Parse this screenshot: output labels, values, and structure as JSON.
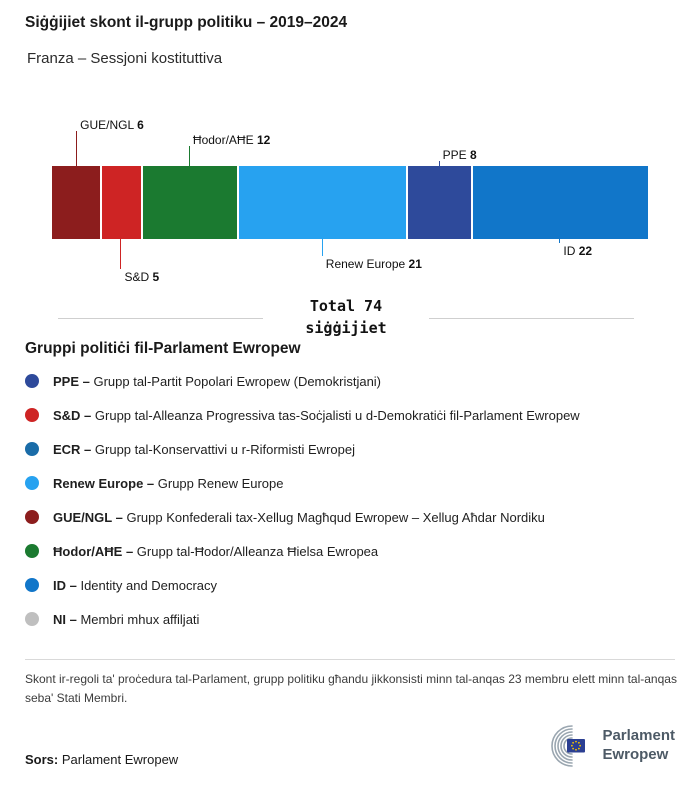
{
  "chart_data": {
    "type": "bar",
    "orientation": "horizontal-stacked",
    "title": "Siġġijiet skont il-grupp politiku – 2019–2024",
    "subtitle": "Franza – Sessjoni kostituttiva",
    "total": 74,
    "total_label": {
      "line1": "Total 74",
      "line2": "siġġijiet"
    },
    "categories": [
      "GUE/NGL",
      "S&D",
      "Ħodor/AĦE",
      "Renew Europe",
      "PPE",
      "ID"
    ],
    "values": [
      6,
      5,
      12,
      21,
      8,
      22
    ],
    "segments": [
      {
        "name": "GUE/NGL",
        "seats": 6,
        "color": "#8C1D1D",
        "label_side": "above",
        "tier": 3
      },
      {
        "name": "S&D",
        "seats": 5,
        "color": "#CE2424",
        "label_side": "below",
        "tier": 3
      },
      {
        "name": "Ħodor/AĦE",
        "seats": 12,
        "color": "#1B7A30",
        "label_side": "above",
        "tier": 2
      },
      {
        "name": "Renew Europe",
        "seats": 21,
        "color": "#27A2F0",
        "label_side": "below",
        "tier": 2
      },
      {
        "name": "PPE",
        "seats": 8,
        "color": "#2E4A9B",
        "label_side": "above",
        "tier": 1
      },
      {
        "name": "ID",
        "seats": 22,
        "color": "#1176C9",
        "label_side": "below",
        "tier": 1
      }
    ]
  },
  "legend": {
    "heading": "Gruppi politiċi fil-Parlament Ewropew",
    "items": [
      {
        "abbr": "PPE",
        "desc": "Grupp tal-Partit Popolari Ewropew (Demokristjani)",
        "color": "#2E4A9B"
      },
      {
        "abbr": "S&D",
        "desc": "Grupp tal-Alleanza Progressiva tas-Soċjalisti u d-Demokratiċi fil-Parlament Ewropew",
        "color": "#CE2424"
      },
      {
        "abbr": "ECR",
        "desc": "Grupp tal-Konservattivi u r-Riformisti Ewropej",
        "color": "#1A6CA8"
      },
      {
        "abbr": "Renew Europe",
        "desc": "Grupp Renew Europe",
        "color": "#27A2F0"
      },
      {
        "abbr": "GUE/NGL",
        "desc": "Grupp Konfederali tax-Xellug Magħqud Ewropew – Xellug Aħdar Nordiku",
        "color": "#8C1D1D"
      },
      {
        "abbr": "Ħodor/AĦE",
        "desc": "Grupp tal-Ħodor/Alleanza Ħielsa Ewropea",
        "color": "#1B7A30"
      },
      {
        "abbr": "ID",
        "desc": "Identity and Democracy",
        "color": "#1176C9"
      },
      {
        "abbr": "NI",
        "desc": "Membri mhux affiljati",
        "color": "#BFBFBF"
      }
    ]
  },
  "footnote": "Skont ir-regoli ta' proċedura tal-Parlament, grupp politiku għandu jikkonsisti minn tal-anqas 23 membru elett minn tal-anqas seba' Stati Membri.",
  "source": {
    "label": "Sors:",
    "value": "Parlament Ewropew"
  },
  "logo": {
    "line1": "Parlament",
    "line2": "Ewropew"
  }
}
